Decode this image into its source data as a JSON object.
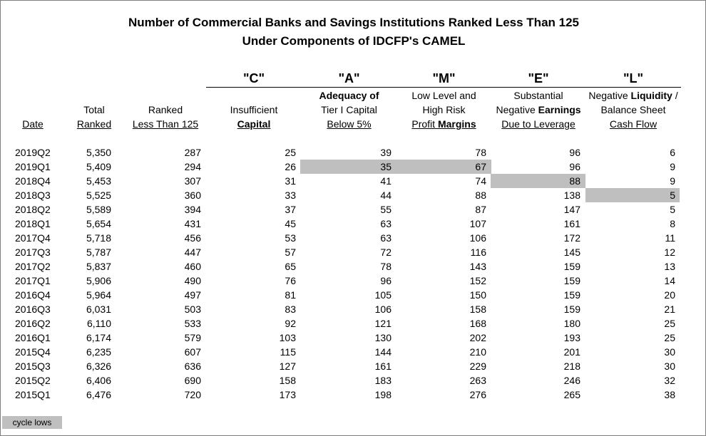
{
  "title": {
    "line1": "Number of Commercial Banks and Savings Institutions Ranked Less Than 125",
    "line2": "Under Components of IDCFP's CAMEL"
  },
  "categories": {
    "c": "\"C\"",
    "a": "\"A\"",
    "m": "\"M\"",
    "e": "\"E\"",
    "l": "\"L\""
  },
  "headers": {
    "date": "Date",
    "total_1": "Total",
    "total_2": "Ranked",
    "ranked_1": "Ranked",
    "ranked_2": "Less Than 125",
    "c_1": "Insufficient",
    "c_2": "Capital",
    "a_1": "Adequacy of",
    "a_2": "Tier I Capital",
    "a_3": "Below 5%",
    "m_1": "Low Level and",
    "m_2": "High Risk",
    "m_3a": "Profit ",
    "m_3b": "Margins",
    "e_1": "Substantial",
    "e_2a": "Negative ",
    "e_2b": "Earnings",
    "e_3": "Due to Leverage",
    "l_1a": "Negative ",
    "l_1b": "Liquidity",
    "l_1c": " /",
    "l_2": "Balance Sheet",
    "l_3": "Cash Flow"
  },
  "rows": [
    [
      "2019Q2",
      "5,350",
      "287",
      "25",
      "39",
      "78",
      "96",
      "6"
    ],
    [
      "2019Q1",
      "5,409",
      "294",
      "26",
      "35",
      "67",
      "96",
      "9"
    ],
    [
      "2018Q4",
      "5,453",
      "307",
      "31",
      "41",
      "74",
      "88",
      "9"
    ],
    [
      "2018Q3",
      "5,525",
      "360",
      "33",
      "44",
      "88",
      "138",
      "5"
    ],
    [
      "2018Q2",
      "5,589",
      "394",
      "37",
      "55",
      "87",
      "147",
      "5"
    ],
    [
      "2018Q1",
      "5,654",
      "431",
      "45",
      "63",
      "107",
      "161",
      "8"
    ],
    [
      "2017Q4",
      "5,718",
      "456",
      "53",
      "63",
      "106",
      "172",
      "11"
    ],
    [
      "2017Q3",
      "5,787",
      "447",
      "57",
      "72",
      "116",
      "145",
      "12"
    ],
    [
      "2017Q2",
      "5,837",
      "460",
      "65",
      "78",
      "143",
      "159",
      "13"
    ],
    [
      "2017Q1",
      "5,906",
      "490",
      "76",
      "96",
      "152",
      "159",
      "14"
    ],
    [
      "2016Q4",
      "5,964",
      "497",
      "81",
      "105",
      "150",
      "159",
      "20"
    ],
    [
      "2016Q3",
      "6,031",
      "503",
      "83",
      "106",
      "158",
      "159",
      "21"
    ],
    [
      "2016Q2",
      "6,110",
      "533",
      "92",
      "121",
      "168",
      "180",
      "25"
    ],
    [
      "2016Q1",
      "6,174",
      "579",
      "103",
      "130",
      "202",
      "193",
      "25"
    ],
    [
      "2015Q4",
      "6,235",
      "607",
      "115",
      "144",
      "210",
      "201",
      "30"
    ],
    [
      "2015Q3",
      "6,326",
      "636",
      "127",
      "161",
      "229",
      "218",
      "30"
    ],
    [
      "2015Q2",
      "6,406",
      "690",
      "158",
      "183",
      "263",
      "246",
      "32"
    ],
    [
      "2015Q1",
      "6,476",
      "720",
      "173",
      "198",
      "276",
      "265",
      "38"
    ]
  ],
  "highlights": [
    [
      1,
      4
    ],
    [
      1,
      5
    ],
    [
      2,
      6
    ],
    [
      3,
      7
    ]
  ],
  "highlight_color": "#bfbfbf",
  "legend": {
    "label": "cycle lows"
  }
}
